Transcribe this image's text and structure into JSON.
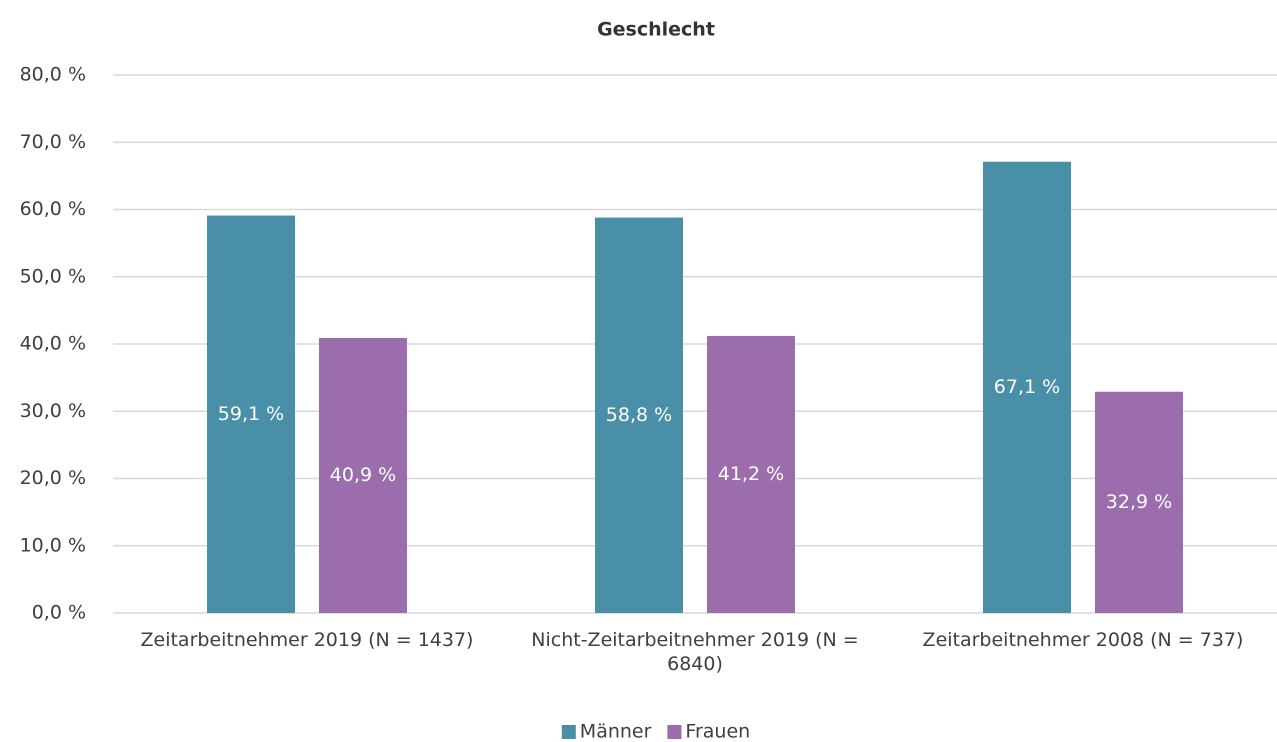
{
  "chart_data": {
    "type": "bar",
    "title": "Geschlecht",
    "categories": [
      "Zeitarbeitnehmer 2019 (N = 1437)",
      "Nicht-Zeitarbeitnehmer 2019 (N = 6840)",
      "Zeitarbeitnehmer 2008 (N = 737)"
    ],
    "series": [
      {
        "name": "Männer",
        "color": "#4a8fa8",
        "values": [
          59.1,
          58.8,
          67.1
        ],
        "value_labels": [
          "59,1 %",
          "58,8 %",
          "67,1 %"
        ]
      },
      {
        "name": "Frauen",
        "color": "#9b6dad",
        "values": [
          40.9,
          41.2,
          32.9
        ],
        "value_labels": [
          "40,9 %",
          "41,2 %",
          "32,9 %"
        ]
      }
    ],
    "ylim": [
      0,
      80
    ],
    "yticks": [
      {
        "value": 0,
        "label": "0,0 %"
      },
      {
        "value": 10,
        "label": "10,0 %"
      },
      {
        "value": 20,
        "label": "20,0 %"
      },
      {
        "value": 30,
        "label": "30,0 %"
      },
      {
        "value": 40,
        "label": "40,0 %"
      },
      {
        "value": 50,
        "label": "50,0 %"
      },
      {
        "value": 60,
        "label": "60,0 %"
      },
      {
        "value": 70,
        "label": "70,0 %"
      },
      {
        "value": 80,
        "label": "80,0 %"
      }
    ],
    "grid": true,
    "legend": "bottom"
  }
}
